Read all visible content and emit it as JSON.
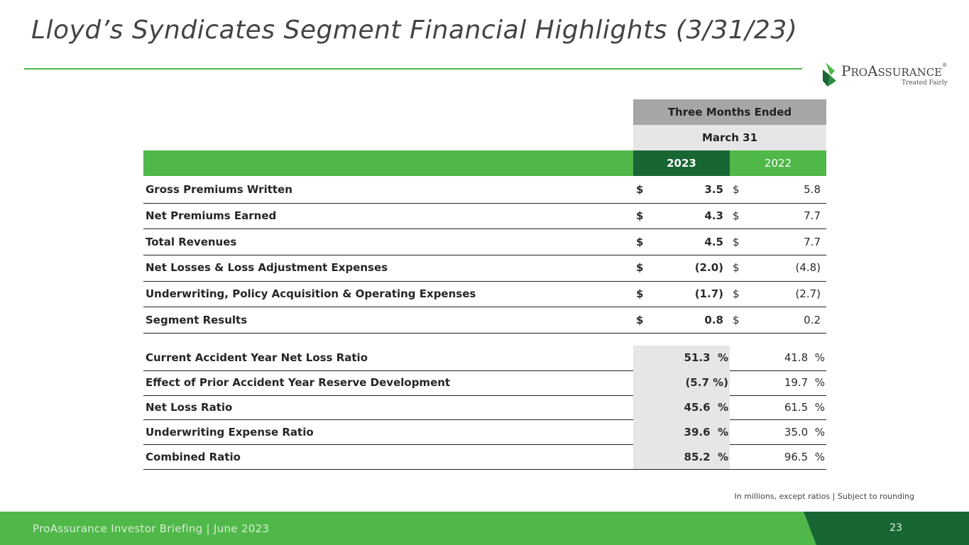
{
  "slide": {
    "title": "Lloyd’s Syndicates Segment Financial Highlights (3/31/23)",
    "logo": {
      "text_p": "P",
      "text_ro": "RO",
      "text_a": "A",
      "text_ssurance": "SSURANCE",
      "tm": "®",
      "tagline": "Treated Fairly"
    },
    "footnote": "In millions, except ratios  |  Subject to rounding",
    "footer": "ProAssurance Investor Briefing | June 2023",
    "page_number": "23"
  },
  "colors": {
    "green": "#4fb848",
    "dark_green": "#176634",
    "header_gray": "#a6a6a6",
    "light_gray": "#e6e6e6"
  },
  "table": {
    "header": {
      "period": "Three Months Ended",
      "date": "March 31",
      "year_current": "2023",
      "year_prior": "2022"
    },
    "dollar_rows": [
      {
        "label": "Gross Premiums Written",
        "cur_sym": "$",
        "cur": "3.5",
        "prior_sym": "$",
        "prior": "5.8"
      },
      {
        "label": "Net Premiums Earned",
        "cur_sym": "$",
        "cur": "4.3",
        "prior_sym": "$",
        "prior": "7.7"
      },
      {
        "label": "Total Revenues",
        "cur_sym": "$",
        "cur": "4.5",
        "prior_sym": "$",
        "prior": "7.7"
      },
      {
        "label": "Net Losses & Loss Adjustment Expenses",
        "cur_sym": "$",
        "cur": "(2.0)",
        "prior_sym": "$",
        "prior": "(4.8)"
      },
      {
        "label": "Underwriting, Policy Acquisition & Operating Expenses",
        "cur_sym": "$",
        "cur": "(1.7)",
        "prior_sym": "$",
        "prior": "(2.7)"
      },
      {
        "label": "Segment Results",
        "cur_sym": "$",
        "cur": "0.8",
        "prior_sym": "$",
        "prior": "0.2"
      }
    ],
    "ratio_rows": [
      {
        "label": "Current Accident Year Net Loss Ratio",
        "cur": "51.3  %",
        "prior": "41.8  %"
      },
      {
        "label": "Effect of Prior Accident Year Reserve Development",
        "cur": "(5.7 %)",
        "prior": "19.7  %"
      },
      {
        "label": "Net Loss Ratio",
        "cur": "45.6  %",
        "prior": "61.5  %"
      },
      {
        "label": "Underwriting Expense Ratio",
        "cur": "39.6  %",
        "prior": "35.0  %"
      },
      {
        "label": "Combined Ratio",
        "cur": "85.2  %",
        "prior": "96.5  %"
      }
    ]
  }
}
